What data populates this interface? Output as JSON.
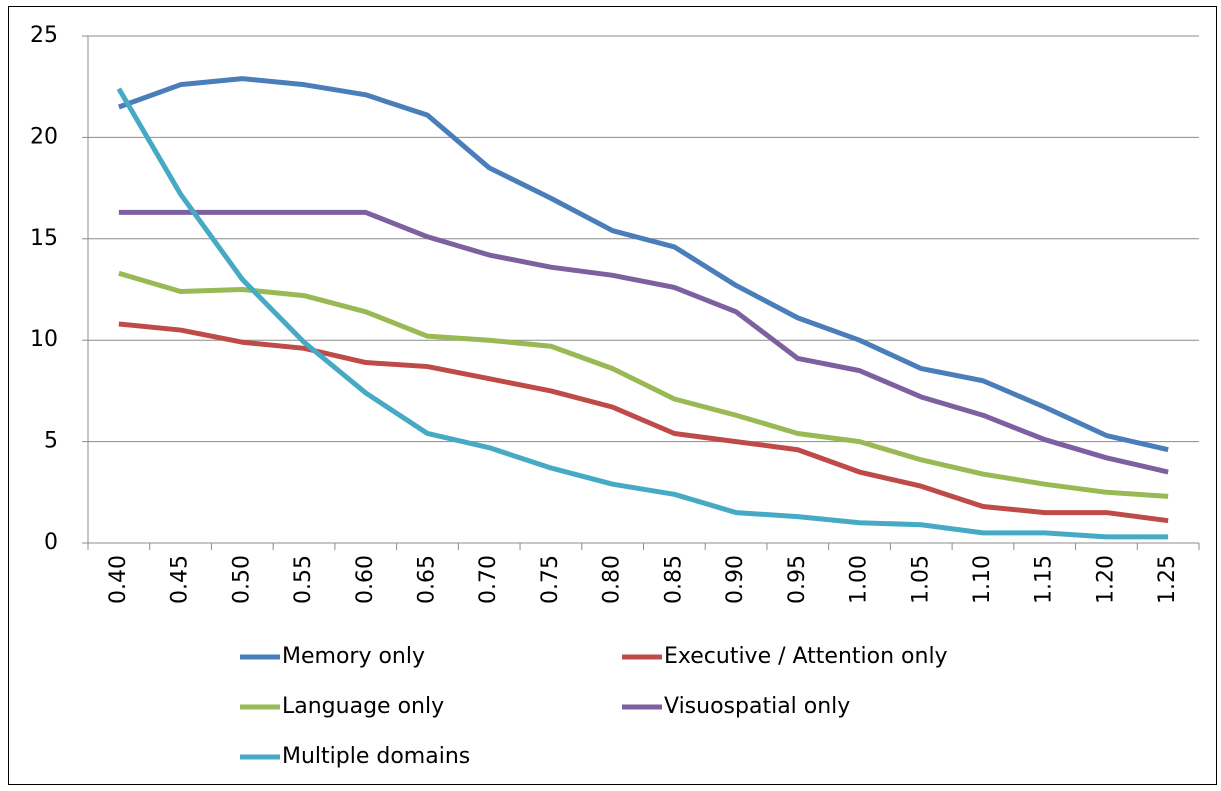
{
  "chart_data": {
    "type": "line",
    "categories": [
      "0.40",
      "0.45",
      "0.50",
      "0.55",
      "0.60",
      "0.65",
      "0.70",
      "0.75",
      "0.80",
      "0.85",
      "0.90",
      "0.95",
      "1.00",
      "1.05",
      "1.10",
      "1.15",
      "1.20",
      "1.25"
    ],
    "series": [
      {
        "name": "Memory only",
        "color": "#4a7ebb",
        "values": [
          21.5,
          22.6,
          22.9,
          22.6,
          22.1,
          21.1,
          18.5,
          17.0,
          15.4,
          14.6,
          12.7,
          11.1,
          10.0,
          8.6,
          8.0,
          6.7,
          5.3,
          4.6
        ]
      },
      {
        "name": "Executive / Attention only",
        "color": "#be4b48",
        "values": [
          10.8,
          10.5,
          9.9,
          9.6,
          8.9,
          8.7,
          8.1,
          7.5,
          6.7,
          5.4,
          5.0,
          4.6,
          3.5,
          2.8,
          1.8,
          1.5,
          1.5,
          1.1
        ]
      },
      {
        "name": "Language only",
        "color": "#98b954",
        "values": [
          13.3,
          12.4,
          12.5,
          12.2,
          11.4,
          10.2,
          10.0,
          9.7,
          8.6,
          7.1,
          6.3,
          5.4,
          5.0,
          4.1,
          3.4,
          2.9,
          2.5,
          2.3
        ]
      },
      {
        "name": "Visuospatial only",
        "color": "#7d60a0",
        "values": [
          16.3,
          16.3,
          16.3,
          16.3,
          16.3,
          15.1,
          14.2,
          13.6,
          13.2,
          12.6,
          11.4,
          9.1,
          8.5,
          7.2,
          6.3,
          5.1,
          4.2,
          3.5
        ]
      },
      {
        "name": "Multiple domains",
        "color": "#46aac5",
        "values": [
          22.4,
          17.2,
          13.0,
          9.9,
          7.4,
          5.4,
          4.7,
          3.7,
          2.9,
          2.4,
          1.5,
          1.3,
          1.0,
          0.9,
          0.5,
          0.5,
          0.3,
          0.3
        ]
      }
    ],
    "ylim": [
      0,
      25
    ],
    "yticks": [
      0,
      5,
      10,
      15,
      20,
      25
    ],
    "grid": true
  }
}
